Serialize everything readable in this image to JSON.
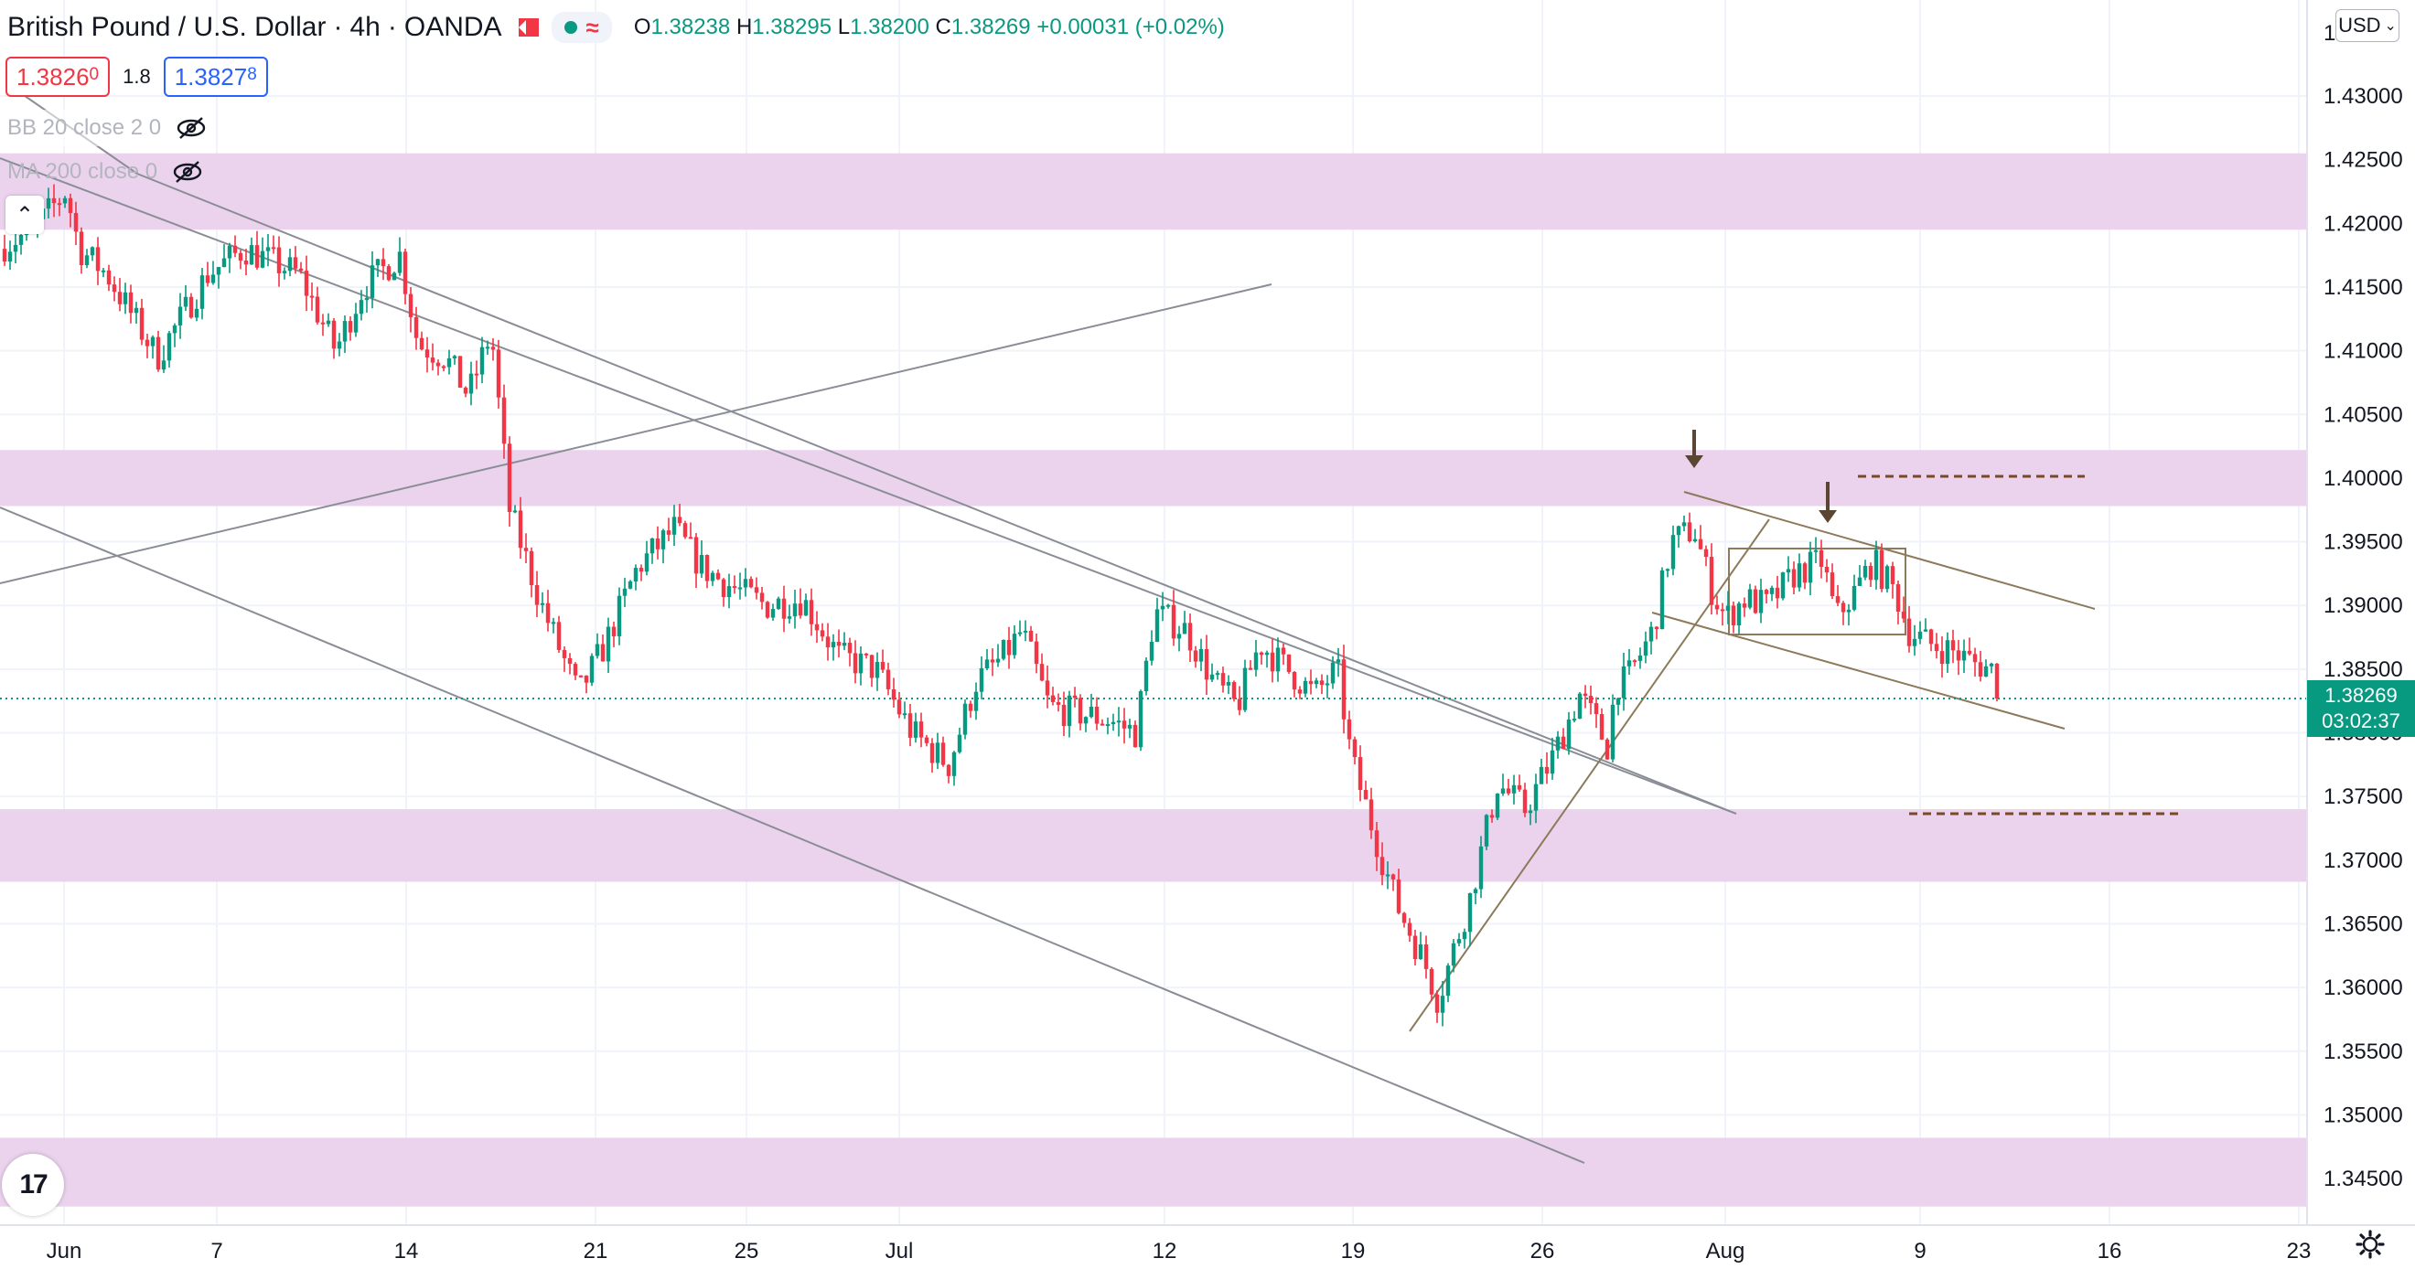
{
  "header": {
    "symbol": "British Pound / U.S. Dollar",
    "interval": "4h",
    "exchange": "OANDA",
    "ohlc": {
      "open_label": "O",
      "open": "1.38238",
      "high_label": "H",
      "high": "1.38295",
      "low_label": "L",
      "low": "1.38200",
      "close_label": "C",
      "close": "1.38269",
      "change": "+0.00031 (+0.02%)"
    },
    "status_icon": "waves-icon"
  },
  "trade": {
    "sell_price_main": "1.3826",
    "sell_price_pip": "0",
    "spread": "1.8",
    "buy_price_main": "1.3827",
    "buy_price_pip": "8"
  },
  "indicators": [
    {
      "label": "BB 20 close 2 0",
      "icon": "eye-crossed-icon"
    },
    {
      "label": "MA 200 close 0",
      "icon": "eye-crossed-icon"
    }
  ],
  "currency_button": "USD",
  "current_price": {
    "value": "1.38269",
    "countdown": "03:02:37"
  },
  "colors": {
    "up": "#089981",
    "down": "#f23645",
    "zone": "#ebd3ee",
    "trend": "#8c7a5a"
  },
  "chart_data": {
    "type": "candlestick",
    "y_axis_ticks": [
      "1.43000",
      "1.42500",
      "1.42000",
      "1.41500",
      "1.41000",
      "1.40500",
      "1.40000",
      "1.39500",
      "1.39000",
      "1.38500",
      "1.38000",
      "1.37500",
      "1.37000",
      "1.36500",
      "1.36000",
      "1.35500",
      "1.35000",
      "1.34500"
    ],
    "y_top_partial": "1",
    "x_axis_ticks": [
      "Jun",
      "7",
      "14",
      "21",
      "25",
      "Jul",
      "12",
      "19",
      "26",
      "Aug",
      "9",
      "16",
      "23"
    ],
    "ylim": [
      1.3425,
      1.4355
    ],
    "zones": [
      [
        1.4195,
        1.4255
      ],
      [
        1.3978,
        1.4022
      ],
      [
        1.3683,
        1.374
      ],
      [
        1.3428,
        1.3482
      ]
    ],
    "dashed_levels": [
      1.4,
      1.3735
    ],
    "last_price": 1.38269
  }
}
